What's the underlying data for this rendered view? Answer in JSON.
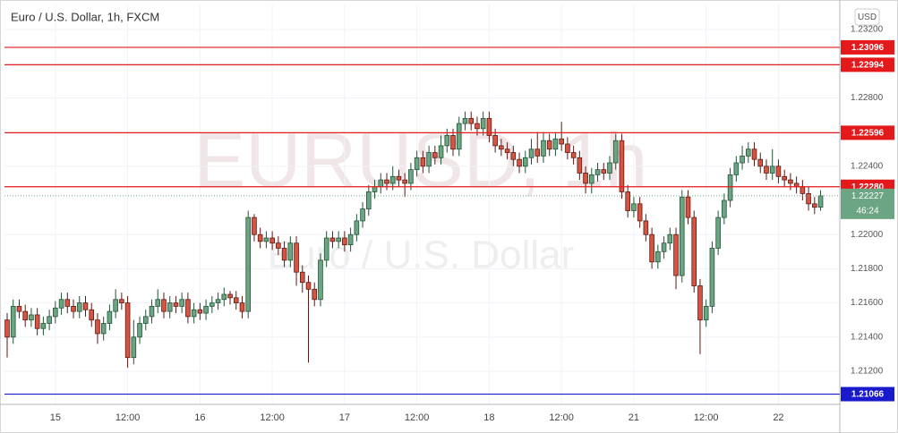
{
  "chart_data": {
    "type": "candlestick",
    "title": "Euro / U.S. Dollar, 1h, FXCM",
    "watermark_symbol": "EURUSD, 1h",
    "watermark_name": "Euro / U.S. Dollar",
    "currency": "USD",
    "up_color": "#6ba583",
    "up_border": "#225437",
    "down_color": "#d75442",
    "down_border": "#5b1a13",
    "grid": true,
    "categories": [
      null,
      null,
      null,
      null,
      null,
      null,
      null,
      null,
      "15",
      null,
      null,
      null,
      null,
      null,
      null,
      null,
      null,
      null,
      null,
      null,
      "12:00",
      null,
      null,
      null,
      null,
      null,
      null,
      null,
      null,
      null,
      null,
      null,
      "16",
      null,
      null,
      null,
      null,
      null,
      null,
      null,
      null,
      null,
      null,
      null,
      "12:00",
      null,
      null,
      null,
      null,
      null,
      null,
      null,
      null,
      null,
      null,
      null,
      "17",
      null,
      null,
      null,
      null,
      null,
      null,
      null,
      null,
      null,
      null,
      null,
      "12:00",
      null,
      null,
      null,
      null,
      null,
      null,
      null,
      null,
      null,
      null,
      null,
      "18",
      null,
      null,
      null,
      null,
      null,
      null,
      null,
      null,
      null,
      null,
      null,
      "12:00",
      null,
      null,
      null,
      null,
      null,
      null,
      null,
      null,
      null,
      null,
      null,
      "21",
      null,
      null,
      null,
      null,
      null,
      null,
      null,
      null,
      null,
      null,
      null,
      "12:00",
      null,
      null,
      null,
      null,
      null,
      null,
      null,
      null,
      null,
      null,
      null,
      "22",
      null,
      null,
      null,
      null,
      null,
      null,
      null
    ],
    "open": [
      1.215,
      1.214,
      1.2158,
      1.2155,
      1.215,
      1.2153,
      1.2145,
      1.2148,
      1.2152,
      1.2157,
      1.2162,
      1.2158,
      1.2155,
      1.216,
      1.2156,
      1.215,
      1.2142,
      1.2148,
      1.2155,
      1.2162,
      1.216,
      1.2128,
      1.214,
      1.2148,
      1.2152,
      1.2158,
      1.2162,
      1.2155,
      1.216,
      1.2158,
      1.2162,
      1.2152,
      1.2156,
      1.2154,
      1.2158,
      1.216,
      1.2162,
      1.2165,
      1.2163,
      1.216,
      1.2155,
      1.221,
      1.22,
      1.2196,
      1.2198,
      1.2195,
      1.2192,
      1.2185,
      1.2195,
      1.2178,
      1.2172,
      1.2168,
      1.2162,
      1.2185,
      1.2198,
      1.2196,
      1.2198,
      1.2194,
      1.22,
      1.2208,
      1.2215,
      1.2225,
      1.2228,
      1.2232,
      1.223,
      1.2234,
      1.2232,
      1.223,
      1.2238,
      1.2245,
      1.224,
      1.2248,
      1.2245,
      1.2252,
      1.2258,
      1.225,
      1.2265,
      1.2268,
      1.2265,
      1.2262,
      1.2268,
      1.2258,
      1.2252,
      1.225,
      1.2248,
      1.2244,
      1.224,
      1.2245,
      1.225,
      1.2246,
      1.2255,
      1.225,
      1.2256,
      1.2253,
      1.2248,
      1.2245,
      1.2236,
      1.223,
      1.2235,
      1.2238,
      1.2236,
      1.2242,
      1.2255,
      1.2225,
      1.2214,
      1.2218,
      1.2208,
      1.22,
      1.2184,
      1.219,
      1.2195,
      1.22,
      1.2176,
      1.2222,
      1.221,
      1.217,
      1.215,
      1.2158,
      1.2192,
      1.221,
      1.222,
      1.2235,
      1.2242,
      1.2246,
      1.225,
      1.2244,
      1.224,
      1.2236,
      1.224,
      1.2234,
      1.2232,
      1.223,
      1.2228,
      1.2224,
      1.2218,
      1.2216
    ],
    "high": [
      1.2154,
      1.2162,
      1.2162,
      1.2159,
      1.2157,
      1.2157,
      1.2152,
      1.2156,
      1.2161,
      1.2166,
      1.2166,
      1.2162,
      1.2164,
      1.2164,
      1.216,
      1.2154,
      1.2152,
      1.2159,
      1.2168,
      1.2166,
      1.2164,
      1.215,
      1.2152,
      1.2156,
      1.2162,
      1.2168,
      1.2166,
      1.2164,
      1.2164,
      1.2166,
      1.2166,
      1.216,
      1.216,
      1.2162,
      1.2164,
      1.2166,
      1.2169,
      1.2167,
      1.2167,
      1.2164,
      1.2214,
      1.2212,
      1.2204,
      1.2202,
      1.2202,
      1.2199,
      1.2196,
      1.2199,
      1.2199,
      1.2182,
      1.2176,
      1.2172,
      1.2189,
      1.2202,
      1.2202,
      1.2202,
      1.2202,
      1.2204,
      1.2212,
      1.2219,
      1.2229,
      1.2232,
      1.2236,
      1.2236,
      1.224,
      1.2238,
      1.2236,
      1.2242,
      1.2249,
      1.2249,
      1.2252,
      1.2252,
      1.2258,
      1.2262,
      1.2262,
      1.2269,
      1.2272,
      1.2272,
      1.2269,
      1.2272,
      1.2272,
      1.2262,
      1.2256,
      1.2254,
      1.2252,
      1.2248,
      1.2249,
      1.2256,
      1.226,
      1.226,
      1.2259,
      1.226,
      1.2266,
      1.2257,
      1.2252,
      1.2249,
      1.224,
      1.2239,
      1.2242,
      1.2242,
      1.2246,
      1.2259,
      1.2259,
      1.2229,
      1.2222,
      1.2222,
      1.2212,
      1.2204,
      1.2194,
      1.2199,
      1.2204,
      1.2204,
      1.2226,
      1.2226,
      1.2214,
      1.2174,
      1.2162,
      1.2196,
      1.2214,
      1.2224,
      1.2239,
      1.2246,
      1.2252,
      1.2254,
      1.2254,
      1.2248,
      1.2244,
      1.225,
      1.2244,
      1.2238,
      1.2236,
      1.2234,
      1.2232,
      1.2228,
      1.2222,
      1.2226
    ],
    "low": [
      1.2128,
      1.2136,
      1.2151,
      1.2146,
      1.2146,
      1.2141,
      1.2141,
      1.2144,
      1.2148,
      1.2153,
      1.2154,
      1.2151,
      1.2151,
      1.2152,
      1.2146,
      1.2136,
      1.2138,
      1.2144,
      1.2151,
      1.2156,
      1.2122,
      1.2124,
      1.2136,
      1.2144,
      1.2148,
      1.2154,
      1.2151,
      1.2151,
      1.2154,
      1.2154,
      1.2148,
      1.2148,
      1.215,
      1.215,
      1.2154,
      1.2156,
      1.2158,
      1.2159,
      1.2156,
      1.2151,
      1.2151,
      1.2196,
      1.2192,
      1.2192,
      1.2191,
      1.2188,
      1.2181,
      1.2181,
      1.217,
      1.2166,
      1.2125,
      1.2158,
      1.2158,
      1.2181,
      1.2192,
      1.2192,
      1.219,
      1.219,
      1.2196,
      1.2204,
      1.2211,
      1.2221,
      1.2224,
      1.2226,
      1.2226,
      1.2228,
      1.2222,
      1.2226,
      1.2234,
      1.2236,
      1.2236,
      1.2241,
      1.2241,
      1.2248,
      1.2246,
      1.2246,
      1.2261,
      1.2261,
      1.2258,
      1.2258,
      1.2254,
      1.2248,
      1.2246,
      1.2244,
      1.224,
      1.2236,
      1.2236,
      1.2241,
      1.2242,
      1.2242,
      1.2246,
      1.2246,
      1.2249,
      1.2244,
      1.2241,
      1.2232,
      1.2224,
      1.2224,
      1.2231,
      1.2232,
      1.2232,
      1.2238,
      1.2221,
      1.221,
      1.221,
      1.2204,
      1.2196,
      1.218,
      1.218,
      1.2186,
      1.2191,
      1.2168,
      1.2172,
      1.2206,
      1.2166,
      1.213,
      1.2146,
      1.2154,
      1.2188,
      1.2206,
      1.2216,
      1.2231,
      1.2238,
      1.2242,
      1.224,
      1.2236,
      1.2232,
      1.2232,
      1.223,
      1.2228,
      1.2226,
      1.2224,
      1.222,
      1.2214,
      1.2212,
      1.2214
    ],
    "close": [
      1.214,
      1.2158,
      1.2155,
      1.215,
      1.2153,
      1.2145,
      1.2148,
      1.2152,
      1.2157,
      1.2162,
      1.2158,
      1.2155,
      1.216,
      1.2156,
      1.215,
      1.2142,
      1.2148,
      1.2155,
      1.2162,
      1.216,
      1.2128,
      1.214,
      1.2148,
      1.2152,
      1.2158,
      1.2162,
      1.2155,
      1.216,
      1.2158,
      1.2162,
      1.2152,
      1.2156,
      1.2154,
      1.2158,
      1.216,
      1.2162,
      1.2165,
      1.2163,
      1.216,
      1.2155,
      1.221,
      1.22,
      1.2196,
      1.2198,
      1.2195,
      1.2192,
      1.2185,
      1.2195,
      1.2178,
      1.2172,
      1.2168,
      1.2162,
      1.2185,
      1.2198,
      1.2196,
      1.2198,
      1.2194,
      1.22,
      1.2208,
      1.2215,
      1.2225,
      1.2228,
      1.2232,
      1.223,
      1.2234,
      1.2232,
      1.223,
      1.2238,
      1.2245,
      1.224,
      1.2248,
      1.2245,
      1.2252,
      1.2258,
      1.225,
      1.2265,
      1.2268,
      1.2265,
      1.2262,
      1.2268,
      1.2258,
      1.2252,
      1.225,
      1.2248,
      1.2244,
      1.224,
      1.2245,
      1.225,
      1.2246,
      1.2255,
      1.225,
      1.2256,
      1.2253,
      1.2248,
      1.2245,
      1.2236,
      1.223,
      1.2235,
      1.2238,
      1.2236,
      1.2242,
      1.2255,
      1.2225,
      1.2214,
      1.2218,
      1.2208,
      1.22,
      1.2184,
      1.219,
      1.2195,
      1.22,
      1.2176,
      1.2222,
      1.221,
      1.217,
      1.215,
      1.2158,
      1.2192,
      1.221,
      1.222,
      1.2235,
      1.2242,
      1.2246,
      1.225,
      1.2244,
      1.224,
      1.2236,
      1.224,
      1.2234,
      1.2232,
      1.223,
      1.2228,
      1.2224,
      1.2218,
      1.2216,
      1.22227
    ],
    "ylim": [
      1.21006,
      1.23347
    ],
    "yticks": [
      {
        "value": 1.232,
        "label": "1.23200"
      },
      {
        "value": 1.228,
        "label": "1.22800"
      },
      {
        "value": 1.224,
        "label": "1.22400"
      },
      {
        "value": 1.22,
        "label": "1.22000"
      },
      {
        "value": 1.218,
        "label": "1.21800"
      },
      {
        "value": 1.216,
        "label": "1.21600"
      },
      {
        "value": 1.214,
        "label": "1.21400"
      },
      {
        "value": 1.212,
        "label": "1.21200"
      }
    ],
    "levels": [
      {
        "value": 1.23096,
        "label": "1.23096",
        "color": "#e3191b"
      },
      {
        "value": 1.22994,
        "label": "1.22994",
        "color": "#e3191b"
      },
      {
        "value": 1.22596,
        "label": "1.22596",
        "color": "#e3191b"
      },
      {
        "value": 1.2228,
        "label": "1.22280",
        "color": "#e3191b"
      },
      {
        "value": 1.21066,
        "label": "1.21066",
        "color": "#1a1acd"
      }
    ],
    "last_price": {
      "value": 1.22227,
      "label": "1.22227"
    },
    "countdown": "46:24"
  }
}
